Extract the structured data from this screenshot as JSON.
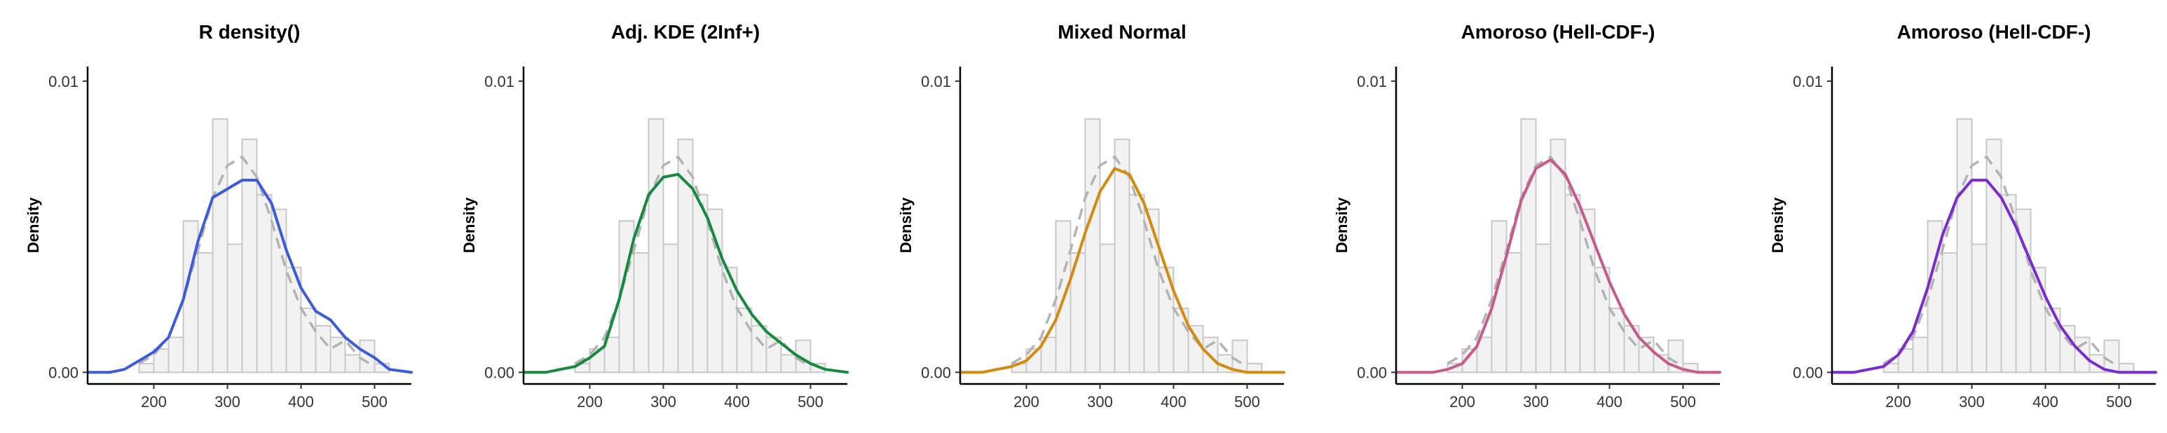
{
  "figure": {
    "x_ticks": [
      200,
      300,
      400,
      500
    ],
    "y_ticks": [
      "0.00",
      "0.01"
    ],
    "hist_fill": "#f2f2f2",
    "hist_stroke": "#c8c8c8",
    "reference_curve_color": "#b3b3b3",
    "reference_curve_style": "dashed"
  },
  "chart_data": [
    {
      "type": "histogram+density",
      "title": "R density()",
      "ylabel": "Density",
      "xlim": [
        110,
        550
      ],
      "ylim": [
        -0.0004,
        0.0105
      ],
      "color": "#3b5bdb",
      "histogram": {
        "bins": [
          [
            180,
            200
          ],
          [
            200,
            220
          ],
          [
            220,
            240
          ],
          [
            240,
            260
          ],
          [
            260,
            280
          ],
          [
            280,
            300
          ],
          [
            300,
            320
          ],
          [
            320,
            340
          ],
          [
            340,
            360
          ],
          [
            360,
            380
          ],
          [
            380,
            400
          ],
          [
            400,
            420
          ],
          [
            420,
            440
          ],
          [
            440,
            460
          ],
          [
            460,
            480
          ],
          [
            480,
            500
          ],
          [
            500,
            520
          ]
        ],
        "density": [
          0.0003,
          0.0008,
          0.0012,
          0.0052,
          0.0041,
          0.0087,
          0.0044,
          0.008,
          0.0061,
          0.0056,
          0.0036,
          0.0022,
          0.0016,
          0.0012,
          0.0006,
          0.0011,
          0.0003
        ]
      },
      "reference_curve": {
        "x": [
          180,
          200,
          220,
          240,
          260,
          280,
          300,
          320,
          340,
          360,
          380,
          400,
          420,
          440,
          460,
          480,
          500
        ],
        "y": [
          0.0003,
          0.0006,
          0.0012,
          0.0025,
          0.0042,
          0.006,
          0.0071,
          0.0074,
          0.0067,
          0.0052,
          0.0035,
          0.0022,
          0.0014,
          0.0008,
          0.0011,
          0.0005,
          0.0002
        ]
      },
      "density_curve": {
        "x": [
          110,
          140,
          160,
          180,
          200,
          220,
          240,
          260,
          280,
          300,
          320,
          340,
          360,
          380,
          400,
          420,
          440,
          460,
          480,
          500,
          520,
          550
        ],
        "y": [
          0.0,
          0.0,
          0.0001,
          0.0004,
          0.0007,
          0.0012,
          0.0025,
          0.0045,
          0.006,
          0.0063,
          0.0066,
          0.0066,
          0.0058,
          0.0042,
          0.0029,
          0.0021,
          0.0018,
          0.0012,
          0.0008,
          0.0005,
          0.0001,
          0.0
        ]
      }
    },
    {
      "type": "histogram+density",
      "title": "Adj. KDE (2Inf+)",
      "ylabel": "Density",
      "xlim": [
        110,
        550
      ],
      "ylim": [
        -0.0004,
        0.0105
      ],
      "color": "#148a3c",
      "histogram": {
        "bins": [
          [
            180,
            200
          ],
          [
            200,
            220
          ],
          [
            220,
            240
          ],
          [
            240,
            260
          ],
          [
            260,
            280
          ],
          [
            280,
            300
          ],
          [
            300,
            320
          ],
          [
            320,
            340
          ],
          [
            340,
            360
          ],
          [
            360,
            380
          ],
          [
            380,
            400
          ],
          [
            400,
            420
          ],
          [
            420,
            440
          ],
          [
            440,
            460
          ],
          [
            460,
            480
          ],
          [
            480,
            500
          ],
          [
            500,
            520
          ]
        ],
        "density": [
          0.0003,
          0.0008,
          0.0012,
          0.0052,
          0.0041,
          0.0087,
          0.0044,
          0.008,
          0.0061,
          0.0056,
          0.0036,
          0.0022,
          0.0016,
          0.0012,
          0.0006,
          0.0011,
          0.0003
        ]
      },
      "reference_curve": {
        "x": [
          180,
          200,
          220,
          240,
          260,
          280,
          300,
          320,
          340,
          360,
          380,
          400,
          420,
          440,
          460,
          480,
          500
        ],
        "y": [
          0.0003,
          0.0006,
          0.0012,
          0.0025,
          0.0042,
          0.006,
          0.0071,
          0.0074,
          0.0067,
          0.0052,
          0.0035,
          0.0022,
          0.0014,
          0.0008,
          0.0011,
          0.0005,
          0.0002
        ]
      },
      "density_curve": {
        "x": [
          110,
          140,
          160,
          180,
          200,
          220,
          240,
          260,
          280,
          300,
          320,
          340,
          360,
          380,
          400,
          420,
          440,
          460,
          480,
          500,
          520,
          550
        ],
        "y": [
          0.0,
          0.0,
          0.0001,
          0.0002,
          0.0005,
          0.0009,
          0.0025,
          0.0046,
          0.0061,
          0.0067,
          0.0068,
          0.0063,
          0.0053,
          0.0039,
          0.0028,
          0.002,
          0.0014,
          0.001,
          0.0006,
          0.0003,
          0.0001,
          0.0
        ]
      }
    },
    {
      "type": "histogram+density",
      "title": "Mixed Normal",
      "ylabel": "Density",
      "xlim": [
        110,
        550
      ],
      "ylim": [
        -0.0004,
        0.0105
      ],
      "color": "#d48a0c",
      "histogram": {
        "bins": [
          [
            180,
            200
          ],
          [
            200,
            220
          ],
          [
            220,
            240
          ],
          [
            240,
            260
          ],
          [
            260,
            280
          ],
          [
            280,
            300
          ],
          [
            300,
            320
          ],
          [
            320,
            340
          ],
          [
            340,
            360
          ],
          [
            360,
            380
          ],
          [
            380,
            400
          ],
          [
            400,
            420
          ],
          [
            420,
            440
          ],
          [
            440,
            460
          ],
          [
            460,
            480
          ],
          [
            480,
            500
          ],
          [
            500,
            520
          ]
        ],
        "density": [
          0.0003,
          0.0008,
          0.0012,
          0.0052,
          0.0041,
          0.0087,
          0.0044,
          0.008,
          0.0061,
          0.0056,
          0.0036,
          0.0022,
          0.0016,
          0.0012,
          0.0006,
          0.0011,
          0.0003
        ]
      },
      "reference_curve": {
        "x": [
          180,
          200,
          220,
          240,
          260,
          280,
          300,
          320,
          340,
          360,
          380,
          400,
          420,
          440,
          460,
          480,
          500
        ],
        "y": [
          0.0003,
          0.0006,
          0.0012,
          0.0025,
          0.0042,
          0.006,
          0.0071,
          0.0074,
          0.0067,
          0.0052,
          0.0035,
          0.0022,
          0.0014,
          0.0008,
          0.0011,
          0.0005,
          0.0002
        ]
      },
      "density_curve": {
        "x": [
          110,
          140,
          160,
          180,
          200,
          220,
          240,
          260,
          280,
          300,
          320,
          340,
          360,
          380,
          400,
          420,
          440,
          460,
          480,
          500,
          520,
          550
        ],
        "y": [
          0.0,
          0.0,
          0.0001,
          0.0002,
          0.0004,
          0.0009,
          0.0018,
          0.0032,
          0.0048,
          0.0062,
          0.007,
          0.0068,
          0.0058,
          0.0043,
          0.0028,
          0.0016,
          0.0008,
          0.0003,
          0.0001,
          0.0,
          0.0,
          0.0
        ]
      }
    },
    {
      "type": "histogram+density",
      "title": "Amoroso (Hell-CDF-)",
      "ylabel": "Density",
      "xlim": [
        110,
        550
      ],
      "ylim": [
        -0.0004,
        0.0105
      ],
      "color": "#c75a8a",
      "histogram": {
        "bins": [
          [
            180,
            200
          ],
          [
            200,
            220
          ],
          [
            220,
            240
          ],
          [
            240,
            260
          ],
          [
            260,
            280
          ],
          [
            280,
            300
          ],
          [
            300,
            320
          ],
          [
            320,
            340
          ],
          [
            340,
            360
          ],
          [
            360,
            380
          ],
          [
            380,
            400
          ],
          [
            400,
            420
          ],
          [
            420,
            440
          ],
          [
            440,
            460
          ],
          [
            460,
            480
          ],
          [
            480,
            500
          ],
          [
            500,
            520
          ]
        ],
        "density": [
          0.0003,
          0.0008,
          0.0012,
          0.0052,
          0.0041,
          0.0087,
          0.0044,
          0.008,
          0.0061,
          0.0056,
          0.0036,
          0.0022,
          0.0016,
          0.0012,
          0.0006,
          0.0011,
          0.0003
        ]
      },
      "reference_curve": {
        "x": [
          180,
          200,
          220,
          240,
          260,
          280,
          300,
          320,
          340,
          360,
          380,
          400,
          420,
          440,
          460,
          480,
          500
        ],
        "y": [
          0.0003,
          0.0006,
          0.0012,
          0.0025,
          0.0042,
          0.006,
          0.0071,
          0.0074,
          0.0067,
          0.0052,
          0.0035,
          0.0022,
          0.0014,
          0.0008,
          0.0011,
          0.0005,
          0.0002
        ]
      },
      "density_curve": {
        "x": [
          110,
          140,
          160,
          180,
          200,
          220,
          240,
          260,
          280,
          300,
          320,
          340,
          360,
          380,
          400,
          420,
          440,
          460,
          480,
          500,
          520,
          550
        ],
        "y": [
          0.0,
          0.0,
          0.0,
          0.0001,
          0.0003,
          0.0009,
          0.0022,
          0.004,
          0.0059,
          0.007,
          0.0073,
          0.0068,
          0.0057,
          0.0044,
          0.0031,
          0.002,
          0.0012,
          0.0007,
          0.0003,
          0.0001,
          0.0,
          0.0
        ]
      }
    },
    {
      "type": "histogram+density",
      "title": "Amoroso (Hell-CDF-)",
      "ylabel": "Density",
      "xlim": [
        110,
        550
      ],
      "ylim": [
        -0.0004,
        0.0105
      ],
      "color": "#7a2bd0",
      "histogram": {
        "bins": [
          [
            180,
            200
          ],
          [
            200,
            220
          ],
          [
            220,
            240
          ],
          [
            240,
            260
          ],
          [
            260,
            280
          ],
          [
            280,
            300
          ],
          [
            300,
            320
          ],
          [
            320,
            340
          ],
          [
            340,
            360
          ],
          [
            360,
            380
          ],
          [
            380,
            400
          ],
          [
            400,
            420
          ],
          [
            420,
            440
          ],
          [
            440,
            460
          ],
          [
            460,
            480
          ],
          [
            480,
            500
          ],
          [
            500,
            520
          ]
        ],
        "density": [
          0.0003,
          0.0008,
          0.0012,
          0.0052,
          0.0041,
          0.0087,
          0.0044,
          0.008,
          0.0061,
          0.0056,
          0.0036,
          0.0022,
          0.0016,
          0.0012,
          0.0006,
          0.0011,
          0.0003
        ]
      },
      "reference_curve": {
        "x": [
          180,
          200,
          220,
          240,
          260,
          280,
          300,
          320,
          340,
          360,
          380,
          400,
          420,
          440,
          460,
          480,
          500
        ],
        "y": [
          0.0003,
          0.0006,
          0.0012,
          0.0025,
          0.0042,
          0.006,
          0.0071,
          0.0074,
          0.0067,
          0.0052,
          0.0035,
          0.0022,
          0.0014,
          0.0008,
          0.0011,
          0.0005,
          0.0002
        ]
      },
      "density_curve": {
        "x": [
          110,
          140,
          160,
          180,
          200,
          220,
          240,
          260,
          280,
          300,
          320,
          340,
          360,
          380,
          400,
          420,
          440,
          460,
          480,
          500,
          520,
          550
        ],
        "y": [
          0.0,
          0.0,
          0.0001,
          0.0002,
          0.0006,
          0.0014,
          0.0029,
          0.0047,
          0.006,
          0.0066,
          0.0066,
          0.006,
          0.005,
          0.0038,
          0.0026,
          0.0016,
          0.0009,
          0.0004,
          0.0001,
          0.0,
          0.0,
          0.0
        ]
      }
    }
  ]
}
